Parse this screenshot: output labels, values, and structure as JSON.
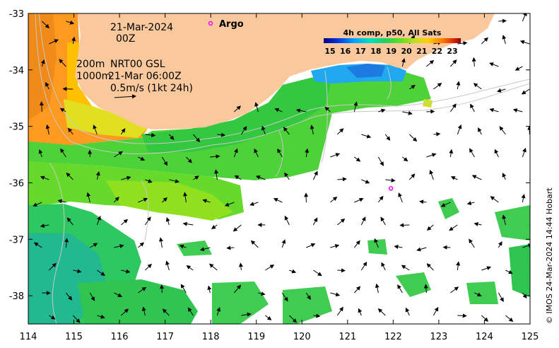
{
  "map": {
    "lon_ticks": [
      "114",
      "115",
      "116",
      "117",
      "118",
      "119",
      "120",
      "121",
      "122",
      "123",
      "124",
      "125"
    ],
    "lat_ticks": [
      "-33",
      "-34",
      "-35",
      "-36",
      "-37",
      "-38"
    ],
    "lon_range": [
      114,
      125
    ],
    "lat_range": [
      -38.5,
      -33
    ],
    "land_color": "#f9c99d",
    "no_data_color": "#ffffff"
  },
  "annotations": {
    "date": "21-Mar-2024",
    "hour": "00Z",
    "contour_200m": "200m",
    "contour_1000m": "1000m",
    "current_model": "NRT00 GSL",
    "current_time": "21-Mar 06:00Z",
    "vector_scale": "0.5m/s (1kt 24h)"
  },
  "argo": {
    "legend_label": "Argo",
    "float_lon": 121.95,
    "float_lat": -36.1,
    "color": "#ff00ff"
  },
  "colorbar": {
    "title": "4h comp, p50, All Sats",
    "tick_labels": [
      "15",
      "16",
      "17",
      "18",
      "19",
      "20",
      "21",
      "22",
      "23"
    ],
    "colors": [
      "#000080",
      "#0030e0",
      "#00a0ff",
      "#00e0c0",
      "#20d060",
      "#60e020",
      "#c0e020",
      "#ffd000",
      "#ff8000",
      "#e03000",
      "#900000"
    ]
  },
  "credit": "© IMOS 24-Mar-2024 14:44 Hobart"
}
